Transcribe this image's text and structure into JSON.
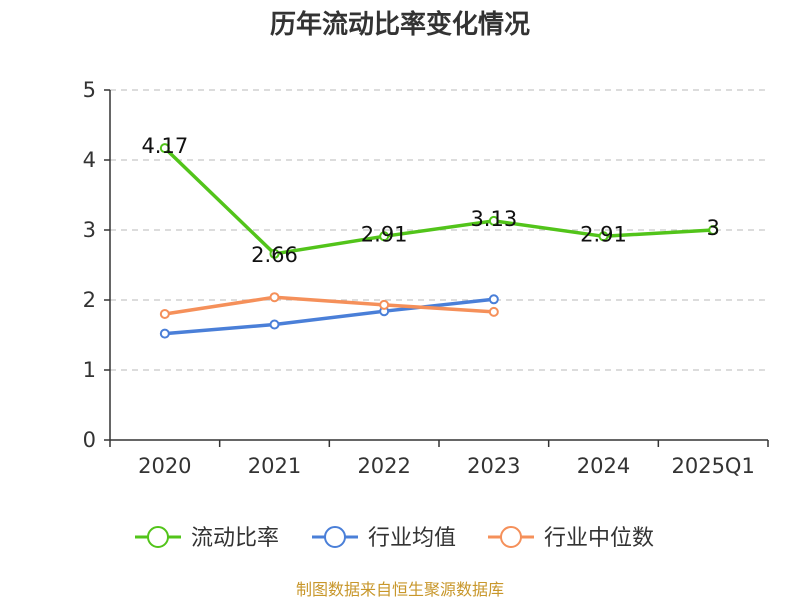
{
  "chart_data": {
    "type": "line",
    "title": "历年流动比率变化情况",
    "categories": [
      "2020",
      "2021",
      "2022",
      "2023",
      "2024",
      "2025Q1"
    ],
    "ylim": [
      0,
      5
    ],
    "yticks": [
      "0",
      "1",
      "2",
      "3",
      "4",
      "5"
    ],
    "grid": true,
    "legend_position": "bottom",
    "series": [
      {
        "name": "流动比率",
        "color": "#52c41a",
        "values": [
          4.17,
          2.66,
          2.91,
          3.13,
          2.91,
          3
        ],
        "labels": [
          "4.17",
          "2.66",
          "2.91",
          "3.13",
          "2.91",
          "3"
        ]
      },
      {
        "name": "行业均值",
        "color": "#4a7fd8",
        "values": [
          1.52,
          1.65,
          1.84,
          2.01,
          null,
          null
        ]
      },
      {
        "name": "行业中位数",
        "color": "#f5905a",
        "values": [
          1.8,
          2.04,
          1.93,
          1.83,
          null,
          null
        ]
      }
    ],
    "source": "制图数据来自恒生聚源数据库"
  }
}
